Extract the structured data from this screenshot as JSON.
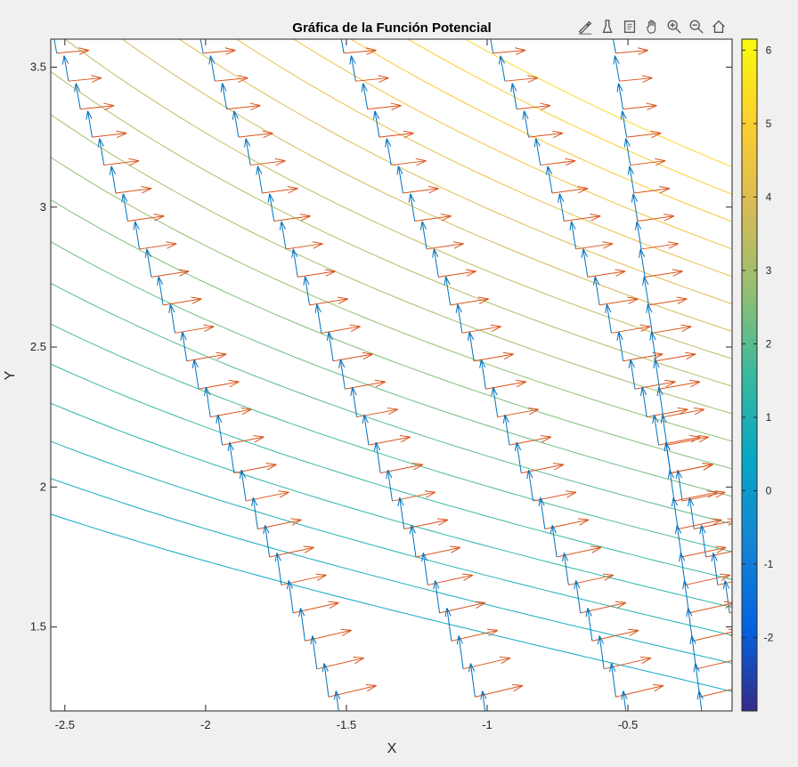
{
  "toolbar": {
    "icons": [
      "edit-plot-icon",
      "brush-icon",
      "data-tips-icon",
      "pan-icon",
      "zoom-in-icon",
      "zoom-out-icon",
      "home-icon"
    ]
  },
  "chart_data": {
    "type": "contour",
    "title": "Gráfica de la Función Potencial",
    "xlabel": "X",
    "ylabel": "Y",
    "xlim": [
      -2.55,
      -0.13
    ],
    "ylim": [
      1.2,
      3.6
    ],
    "xticks": [
      -2.5,
      -2,
      -1.5,
      -1,
      -0.5
    ],
    "xtick_labels": [
      "-2.5",
      "-2",
      "-1.5",
      "-1",
      "-0.5"
    ],
    "yticks": [
      1.5,
      2,
      2.5,
      3,
      3.5
    ],
    "ytick_labels": [
      "1.5",
      "2",
      "2.5",
      "3",
      "3.5"
    ],
    "grid": false,
    "colorbar": {
      "colormap": "parula",
      "range": [
        -3,
        6.15
      ],
      "ticks": [
        -2,
        -1,
        0,
        1,
        2,
        3,
        4,
        5,
        6
      ],
      "tick_labels": [
        "-2",
        "-1",
        "0",
        "1",
        "2",
        "3",
        "4",
        "5",
        "6"
      ]
    },
    "contour_levels": [
      0.5,
      0.75,
      1.0,
      1.25,
      1.5,
      1.75,
      2.0,
      2.25,
      2.5,
      2.75,
      3.0,
      3.25,
      3.5,
      3.75,
      4.0,
      4.25,
      4.5,
      4.75,
      5.0,
      5.25
    ],
    "quiver_series": [
      {
        "name": "",
        "color": "#0072bd",
        "description": "gradient field arrows pointing up"
      },
      {
        "name": "",
        "color": "#d95319",
        "description": "field arrows pointing right"
      }
    ],
    "quiver_columns_x": [
      -2.55,
      -2.03,
      -1.53,
      -1.0,
      -0.55
    ]
  }
}
